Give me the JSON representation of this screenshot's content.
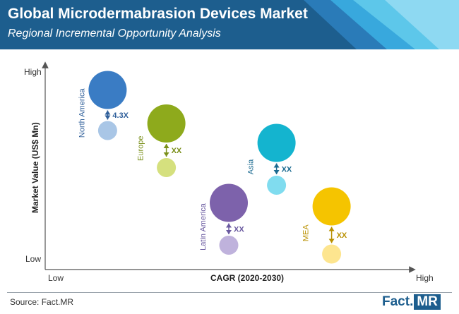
{
  "header": {
    "title": "Global Microdermabrasion Devices Market",
    "subtitle": "Regional Incremental Opportunity Analysis"
  },
  "chart_data": {
    "type": "bubble",
    "xlabel": "CAGR (2020-2030)",
    "ylabel": "Market Value (US$ Mn)",
    "x_low_label": "Low",
    "x_high_label": "High",
    "y_low_label": "Low",
    "y_high_label": "High",
    "series": [
      {
        "name": "North America",
        "color": "#3a7cc4",
        "small_color": "#a9c6e6",
        "x": 0.17,
        "y_large": 0.89,
        "y_small": 0.66,
        "size_large": 1.0,
        "size_small": 0.5,
        "multiplier": "4.3X",
        "label_color": "#2f5f9a"
      },
      {
        "name": "Europe",
        "color": "#8eaa1c",
        "small_color": "#d5e07e",
        "x": 0.33,
        "y_large": 0.7,
        "y_small": 0.45,
        "size_large": 1.0,
        "size_small": 0.5,
        "multiplier": "XX",
        "label_color": "#7a8f1a"
      },
      {
        "name": "Asia",
        "color": "#14b4cf",
        "small_color": "#80dcef",
        "x": 0.63,
        "y_large": 0.59,
        "y_small": 0.35,
        "size_large": 1.0,
        "size_small": 0.5,
        "multiplier": "XX",
        "label_color": "#1a6a90"
      },
      {
        "name": "Latin America",
        "color": "#7d62ab",
        "small_color": "#bfb2dc",
        "x": 0.5,
        "y_large": 0.25,
        "y_small": 0.01,
        "size_large": 1.0,
        "size_small": 0.5,
        "multiplier": "XX",
        "label_color": "#6a5aa0"
      },
      {
        "name": "MEA",
        "color": "#f5c400",
        "small_color": "#fde58f",
        "x": 0.78,
        "y_large": 0.23,
        "y_small": -0.04,
        "size_large": 1.0,
        "size_small": 0.5,
        "multiplier": "XX",
        "label_color": "#b99000"
      }
    ]
  },
  "footer": {
    "source": "Source: Fact.MR",
    "logo_fact": "Fact.",
    "logo_mr": "MR"
  }
}
